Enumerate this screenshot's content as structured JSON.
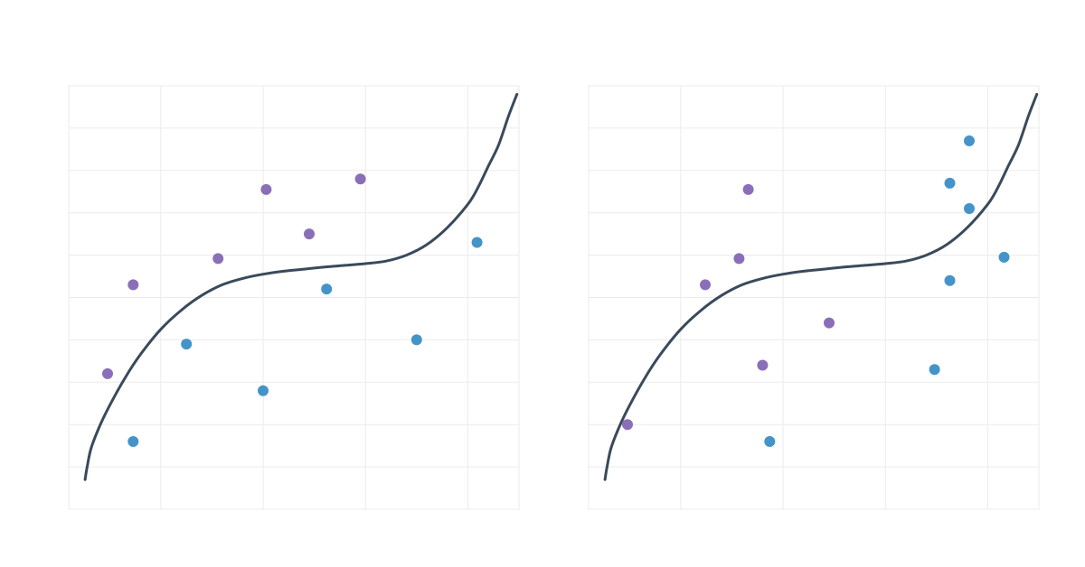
{
  "chart_data": [
    {
      "type": "scatter",
      "title": "",
      "xlabel": "",
      "ylabel": "",
      "xlim": [
        0,
        4.4
      ],
      "ylim": [
        0,
        10
      ],
      "grid": true,
      "legend": "none",
      "x_gridlines": [
        0.9,
        1.9,
        2.9,
        3.9
      ],
      "y_gridlines": [
        1,
        2,
        3,
        4,
        5,
        6,
        7,
        8,
        9
      ],
      "curve": {
        "color": "#3a4a5c",
        "x": [
          0.16,
          0.18,
          0.22,
          0.3,
          0.4,
          0.55,
          0.7,
          0.9,
          1.1,
          1.3,
          1.5,
          1.7,
          1.9,
          2.1,
          2.3,
          2.5,
          2.7,
          2.9,
          3.1,
          3.3,
          3.5,
          3.7,
          3.9,
          4.0,
          4.1,
          4.2,
          4.3,
          4.38
        ],
        "y": [
          0.7,
          1.0,
          1.45,
          1.95,
          2.45,
          3.1,
          3.65,
          4.25,
          4.7,
          5.05,
          5.3,
          5.45,
          5.55,
          5.62,
          5.67,
          5.72,
          5.76,
          5.8,
          5.86,
          6.0,
          6.25,
          6.65,
          7.2,
          7.6,
          8.1,
          8.6,
          9.3,
          9.8
        ]
      },
      "series": [
        {
          "color": "#8a6fb8",
          "x": [
            0.38,
            0.63,
            1.46,
            1.93,
            2.35,
            2.85
          ],
          "y": [
            3.2,
            5.3,
            5.92,
            7.55,
            6.5,
            7.8
          ]
        },
        {
          "color": "#4494c9",
          "x": [
            0.63,
            1.15,
            1.9,
            2.52,
            3.4,
            3.99
          ],
          "y": [
            1.6,
            3.9,
            2.8,
            5.2,
            4.0,
            6.3
          ]
        }
      ]
    },
    {
      "type": "scatter",
      "title": "",
      "xlabel": "",
      "ylabel": "",
      "xlim": [
        0,
        4.4
      ],
      "ylim": [
        0,
        10
      ],
      "grid": true,
      "legend": "none",
      "x_gridlines": [
        0.9,
        1.9,
        2.9,
        3.9
      ],
      "y_gridlines": [
        1,
        2,
        3,
        4,
        5,
        6,
        7,
        8,
        9
      ],
      "curve": {
        "color": "#3a4a5c",
        "x": [
          0.16,
          0.18,
          0.22,
          0.3,
          0.4,
          0.55,
          0.7,
          0.9,
          1.1,
          1.3,
          1.5,
          1.7,
          1.9,
          2.1,
          2.3,
          2.5,
          2.7,
          2.9,
          3.1,
          3.3,
          3.5,
          3.7,
          3.9,
          4.0,
          4.1,
          4.2,
          4.3,
          4.38
        ],
        "y": [
          0.7,
          1.0,
          1.45,
          1.95,
          2.45,
          3.1,
          3.65,
          4.25,
          4.7,
          5.05,
          5.3,
          5.45,
          5.55,
          5.62,
          5.67,
          5.72,
          5.76,
          5.8,
          5.86,
          6.0,
          6.25,
          6.65,
          7.2,
          7.6,
          8.1,
          8.6,
          9.3,
          9.8
        ]
      },
      "series": [
        {
          "color": "#8a6fb8",
          "x": [
            0.38,
            1.14,
            1.47,
            1.56,
            1.7,
            2.35
          ],
          "y": [
            2.0,
            5.3,
            5.92,
            7.55,
            3.4,
            4.4
          ]
        },
        {
          "color": "#4494c9",
          "x": [
            1.77,
            3.38,
            3.53,
            3.72,
            3.53,
            3.72,
            4.06
          ],
          "y": [
            1.6,
            3.3,
            5.4,
            7.1,
            7.7,
            8.7,
            5.95
          ]
        }
      ]
    }
  ]
}
